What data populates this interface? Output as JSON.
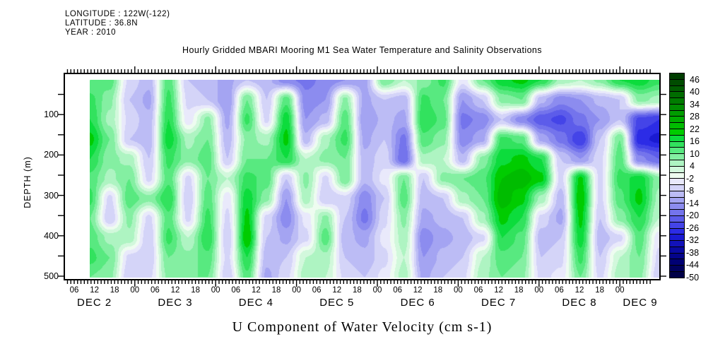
{
  "meta": {
    "longitude": "LONGITUDE : 122W(-122)",
    "latitude": "LATITUDE : 36.8N",
    "year": "YEAR : 2010"
  },
  "chart_data": {
    "type": "heatmap",
    "title": "Hourly Gridded MBARI Mooring M1 Sea Water Temperature and Salinity Observations",
    "xlabel": "U Component of Water Velocity (cm s-1)",
    "ylabel": "DEPTH (m)",
    "value_unit": "cm s-1",
    "x_axis": {
      "hour_labels": [
        "06",
        "12",
        "18",
        "00",
        "06",
        "12",
        "18",
        "00",
        "06",
        "12",
        "18",
        "00",
        "06",
        "12",
        "18",
        "00",
        "06",
        "12",
        "18",
        "00",
        "06",
        "12",
        "18",
        "00",
        "06",
        "12",
        "18",
        "00"
      ],
      "date_labels": [
        "DEC 2",
        "DEC 3",
        "DEC 4",
        "DEC 5",
        "DEC 6",
        "DEC 7",
        "DEC 8",
        "DEC 9"
      ],
      "minor_tick": "hourly",
      "long_tick": "midnight"
    },
    "y_axis": {
      "tick_labels": [
        "100",
        "200",
        "300",
        "400",
        "500"
      ],
      "range": [
        0,
        500
      ],
      "minor_tick_step_m": 50
    },
    "colorbar": {
      "tick_labels": [
        "46",
        "40",
        "34",
        "28",
        "22",
        "16",
        "10",
        "4",
        "-2",
        "-8",
        "-14",
        "-20",
        "-26",
        "-32",
        "-38",
        "-44",
        "-50"
      ],
      "max_level": 49,
      "level_step": 3,
      "palette": [
        "#003d00",
        "#004c00",
        "#005c00",
        "#006c00",
        "#007c00",
        "#008c00",
        "#009c00",
        "#00ac00",
        "#00bc00",
        "#00cc00",
        "#0cdc3c",
        "#32e25e",
        "#58e980",
        "#84efa2",
        "#aef4c2",
        "#d2f8dc",
        "#eefcf0",
        "#e9e9fb",
        "#d4d4f8",
        "#bcbcf5",
        "#a4a4f2",
        "#8c8cef",
        "#7474ec",
        "#5c5cea",
        "#4444e8",
        "#2c2ce6",
        "#1a1ad2",
        "#1212ba",
        "#0a0aa2",
        "#04048a",
        "#000074",
        "#00005e",
        "#000048"
      ]
    },
    "grid": {
      "note": "u-velocity (cm/s) estimated on coarse grid; rows = depths, cols = time Dec 2 ~10:30 to Dec 9 ~12:00",
      "depths_m": [
        0,
        50,
        100,
        150,
        200,
        250,
        300,
        350,
        400,
        450,
        500
      ],
      "cols": 30,
      "values": [
        [
          10,
          12,
          -6,
          -10,
          12,
          -8,
          -10,
          -12,
          -8,
          -10,
          -16,
          -18,
          -16,
          -14,
          -12,
          10,
          4,
          8,
          14,
          -4,
          10,
          18,
          20,
          16,
          6,
          4,
          8,
          16,
          18,
          14
        ],
        [
          14,
          8,
          -8,
          -12,
          14,
          -6,
          -8,
          -14,
          10,
          -8,
          12,
          -16,
          -14,
          8,
          -12,
          -8,
          -10,
          14,
          10,
          -14,
          -8,
          8,
          10,
          -10,
          -16,
          -14,
          -10,
          -8,
          8,
          6
        ],
        [
          16,
          6,
          -6,
          -10,
          16,
          -4,
          8,
          -12,
          14,
          -6,
          18,
          -14,
          -10,
          12,
          -14,
          -10,
          -12,
          16,
          12,
          -18,
          -16,
          -8,
          -16,
          -22,
          -24,
          -18,
          -14,
          -8,
          -24,
          -26
        ],
        [
          20,
          10,
          -8,
          -10,
          18,
          6,
          10,
          -10,
          8,
          6,
          20,
          -10,
          6,
          14,
          -12,
          -8,
          -18,
          12,
          8,
          -16,
          -12,
          14,
          12,
          -12,
          -18,
          -26,
          -8,
          10,
          -28,
          -30
        ],
        [
          16,
          8,
          6,
          -8,
          14,
          8,
          12,
          -8,
          10,
          10,
          16,
          4,
          8,
          10,
          -10,
          -6,
          -20,
          6,
          4,
          -10,
          8,
          18,
          20,
          16,
          -8,
          -14,
          -6,
          12,
          -16,
          -20
        ],
        [
          12,
          6,
          10,
          -6,
          12,
          -6,
          10,
          4,
          14,
          12,
          -8,
          8,
          -6,
          10,
          -10,
          -4,
          10,
          -8,
          8,
          10,
          12,
          22,
          24,
          20,
          -6,
          20,
          -6,
          14,
          18,
          8
        ],
        [
          14,
          -6,
          12,
          8,
          16,
          -8,
          12,
          -4,
          18,
          8,
          -14,
          6,
          -8,
          -6,
          -16,
          -8,
          12,
          -10,
          -8,
          6,
          10,
          24,
          20,
          6,
          -10,
          22,
          -6,
          12,
          20,
          6
        ],
        [
          10,
          -8,
          8,
          -6,
          12,
          -6,
          14,
          -6,
          20,
          -6,
          -16,
          -4,
          8,
          -8,
          -18,
          -6,
          8,
          -12,
          -10,
          -8,
          6,
          20,
          16,
          -6,
          -12,
          20,
          -8,
          8,
          16,
          4
        ],
        [
          12,
          6,
          6,
          -8,
          14,
          4,
          16,
          -8,
          22,
          -8,
          -12,
          -6,
          12,
          -10,
          -12,
          -4,
          6,
          -16,
          -12,
          -10,
          -6,
          16,
          12,
          -10,
          -8,
          18,
          -10,
          -6,
          12,
          -4
        ],
        [
          14,
          10,
          -6,
          -8,
          10,
          8,
          12,
          -6,
          16,
          -10,
          -8,
          4,
          6,
          -8,
          -10,
          -6,
          4,
          -14,
          -10,
          -8,
          4,
          12,
          10,
          -8,
          -6,
          14,
          -8,
          4,
          10,
          -6
        ],
        [
          10,
          8,
          -8,
          -6,
          8,
          10,
          10,
          -8,
          12,
          -12,
          -6,
          6,
          4,
          -6,
          -8,
          -4,
          6,
          -12,
          -8,
          -6,
          6,
          10,
          8,
          -6,
          -4,
          10,
          -6,
          6,
          8,
          -8
        ]
      ]
    }
  }
}
